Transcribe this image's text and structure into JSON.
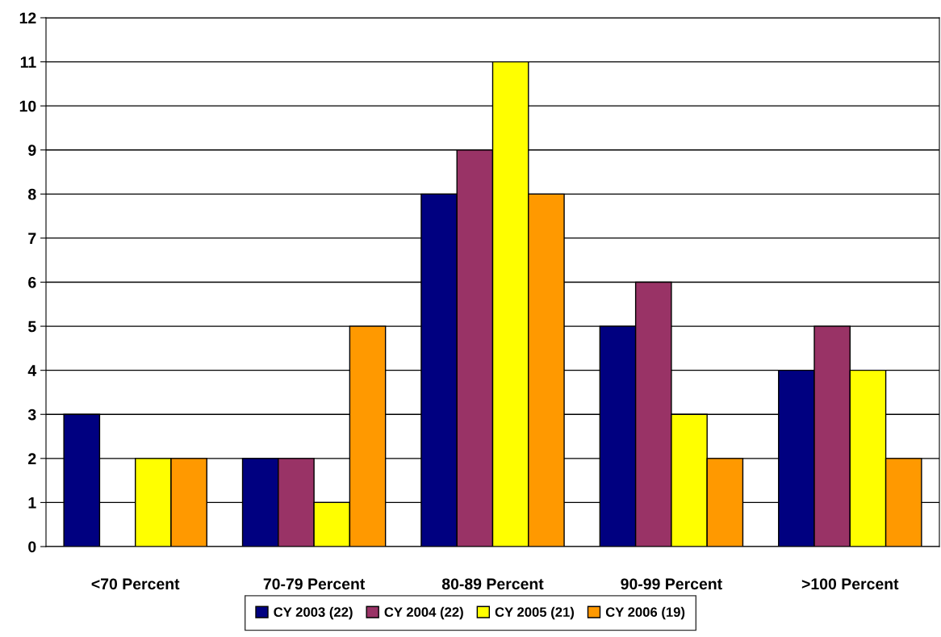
{
  "chart_data": {
    "type": "bar",
    "categories": [
      "<70 Percent",
      "70-79 Percent",
      "80-89 Percent",
      "90-99 Percent",
      ">100 Percent"
    ],
    "series": [
      {
        "name": "CY 2003 (22)",
        "color": "#000080",
        "values": [
          3,
          2,
          8,
          5,
          4
        ]
      },
      {
        "name": "CY 2004 (22)",
        "color": "#993366",
        "values": [
          0,
          2,
          9,
          6,
          5
        ]
      },
      {
        "name": "CY 2005 (21)",
        "color": "#ffff00",
        "values": [
          2,
          1,
          11,
          3,
          4
        ]
      },
      {
        "name": "CY 2006 (19)",
        "color": "#ff9900",
        "values": [
          2,
          5,
          8,
          2,
          2
        ]
      }
    ],
    "ylim": [
      0,
      12
    ],
    "yticks": [
      0,
      1,
      2,
      3,
      4,
      5,
      6,
      7,
      8,
      9,
      10,
      11,
      12
    ],
    "grid": "y",
    "legend": "bottom"
  }
}
